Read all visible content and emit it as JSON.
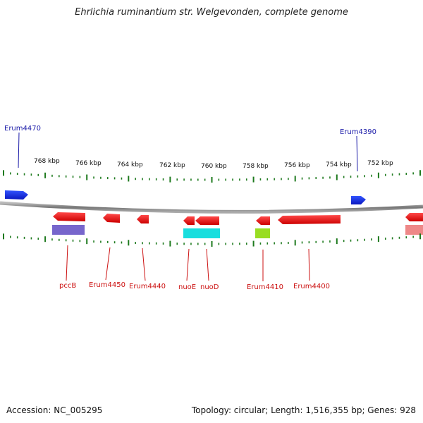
{
  "title": "Ehrlichia ruminantium str. Welgevonden, complete genome",
  "footer": {
    "accession": "Accession: NC_005295",
    "summary": "Topology: circular; Length: 1,516,355 bp; Genes: 928"
  },
  "scale": {
    "labels": [
      "768 kbp",
      "766 kbp",
      "764 kbp",
      "762 kbp",
      "760 kbp",
      "758 kbp",
      "756 kbp",
      "754 kbp",
      "752 kbp"
    ]
  },
  "genes_forward": [
    {
      "label": "Erum4470",
      "color": "#1a1aa8"
    },
    {
      "label": "Erum4390",
      "color": "#1a1aa8"
    }
  ],
  "genes_reverse": [
    {
      "label": "pccB",
      "color": "#cc1111"
    },
    {
      "label": "Erum4450",
      "color": "#cc1111"
    },
    {
      "label": "Erum4440",
      "color": "#cc1111"
    },
    {
      "label": "nuoE",
      "color": "#cc1111"
    },
    {
      "label": "nuoD",
      "color": "#cc1111"
    },
    {
      "label": "Erum4410",
      "color": "#cc1111"
    },
    {
      "label": "Erum4400",
      "color": "#cc1111"
    }
  ],
  "colors": {
    "forward_gene": "#1a2fe6",
    "reverse_gene": "#ee1111",
    "backbone": "#888888",
    "tick": "#1e7a1e",
    "cog_purple": "#7766cc",
    "cog_cyan": "#18dede",
    "cog_green": "#99dd22",
    "cog_pink": "#ee8888"
  }
}
